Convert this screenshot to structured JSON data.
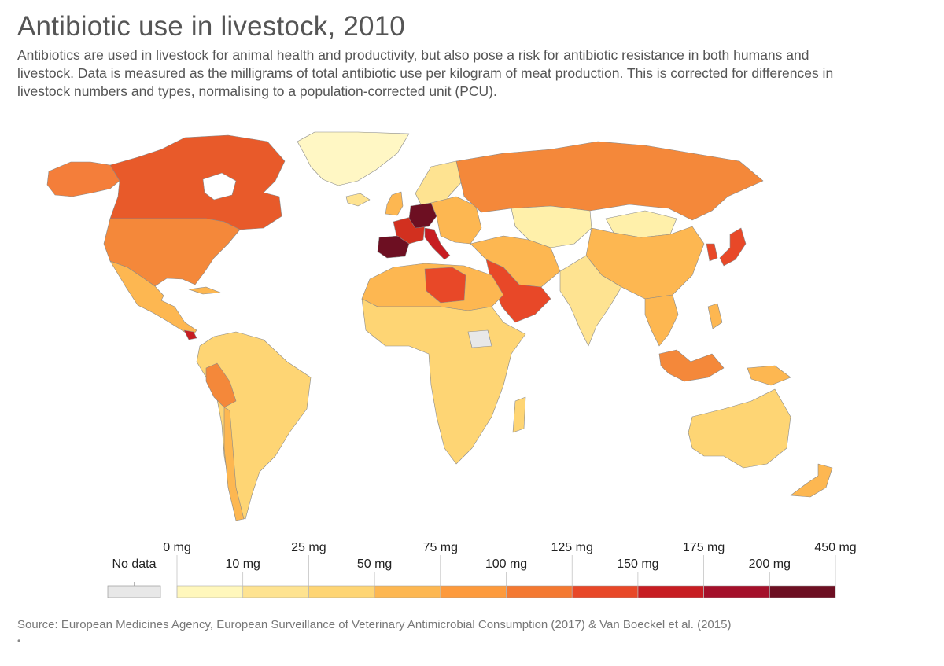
{
  "title": "Antibiotic use in livestock, 2010",
  "subtitle": "Antibiotics are used in livestock for animal health and productivity, but also pose a risk for antibiotic resistance in both humans and livestock. Data is measured as the milligrams of total antibiotic use per kilogram of meat production. This is corrected for differences in livestock numbers and types, normalising to a population-corrected unit (PCU).",
  "source": "Source: European Medicines Agency, European Surveillance of Veterinary Antimicrobial Consumption (2017) & Van Boeckel et al. (2015)",
  "footer_dot": "•",
  "legend": {
    "no_data_label": "No data",
    "no_data_color": "#e8e8e8",
    "bins": [
      {
        "upper_label": "10 mg",
        "color": "#fff7bc"
      },
      {
        "upper_label": "25 mg",
        "color": "#fee391"
      },
      {
        "upper_label": "50 mg",
        "color": "#fed574"
      },
      {
        "upper_label": "75 mg",
        "color": "#fdb751"
      },
      {
        "upper_label": "100 mg",
        "color": "#fd9a3c"
      },
      {
        "upper_label": "125 mg",
        "color": "#f47931"
      },
      {
        "upper_label": "150 mg",
        "color": "#e84828"
      },
      {
        "upper_label": "175 mg",
        "color": "#c71d22"
      },
      {
        "upper_label": "200 mg",
        "color": "#a4102a"
      },
      {
        "upper_label": "450 mg",
        "color": "#6d0f22"
      }
    ],
    "start_label": "0 mg"
  },
  "regions": [
    {
      "name": "Canada",
      "color": "#e85a2a"
    },
    {
      "name": "Alaska",
      "color": "#f47e3a"
    },
    {
      "name": "Greenland",
      "color": "#fff7c4"
    },
    {
      "name": "United States",
      "color": "#f4883a"
    },
    {
      "name": "Mexico & Central America",
      "color": "#fdb751"
    },
    {
      "name": "South America",
      "color": "#fed574"
    },
    {
      "name": "Peru",
      "color": "#f4883a"
    },
    {
      "name": "Chile",
      "color": "#fdb751"
    },
    {
      "name": "Costa Rica",
      "color": "#c71d22"
    },
    {
      "name": "Iceland & Scandinavia",
      "color": "#fee391"
    },
    {
      "name": "Ireland & UK",
      "color": "#fdb751"
    },
    {
      "name": "Germany",
      "color": "#6d0f22"
    },
    {
      "name": "France",
      "color": "#d2301f"
    },
    {
      "name": "Spain",
      "color": "#6d0f22"
    },
    {
      "name": "Italy",
      "color": "#c71d22"
    },
    {
      "name": "Eastern Europe",
      "color": "#fdb751"
    },
    {
      "name": "Russia",
      "color": "#f4883a"
    },
    {
      "name": "Kazakhstan",
      "color": "#fff0aa"
    },
    {
      "name": "China",
      "color": "#fdb751"
    },
    {
      "name": "Mongolia",
      "color": "#fff0aa"
    },
    {
      "name": "Japan",
      "color": "#e84828"
    },
    {
      "name": "Middle East",
      "color": "#fdb751"
    },
    {
      "name": "Saudi Arabia",
      "color": "#e84828"
    },
    {
      "name": "India",
      "color": "#fee391"
    },
    {
      "name": "Southeast Asia",
      "color": "#fdb751"
    },
    {
      "name": "Indonesia",
      "color": "#f4883a"
    },
    {
      "name": "North Africa",
      "color": "#fdb751"
    },
    {
      "name": "Libya",
      "color": "#e84828"
    },
    {
      "name": "Sub-Saharan Africa",
      "color": "#fed574"
    },
    {
      "name": "South Sudan",
      "color": "#e8e8e8"
    },
    {
      "name": "Australia",
      "color": "#fed574"
    },
    {
      "name": "New Zealand",
      "color": "#fdb751"
    }
  ]
}
